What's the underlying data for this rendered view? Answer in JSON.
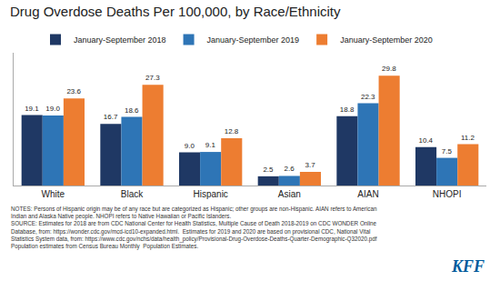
{
  "chart_data": {
    "type": "bar",
    "title": "Drug Overdose Deaths Per 100,000, by Race/Ethnicity",
    "categories": [
      "White",
      "Black",
      "Hispanic",
      "Asian",
      "AIAN",
      "NHOPI"
    ],
    "series": [
      {
        "name": "January-September 2018",
        "color": "#1f3864",
        "values": [
          19.1,
          16.7,
          9.0,
          2.5,
          18.8,
          10.4
        ],
        "value_labels": [
          "19.1",
          "16.7",
          "9.0",
          "2.5",
          "18.8",
          "10.4"
        ]
      },
      {
        "name": "January-September 2019",
        "color": "#2e75b6",
        "values": [
          19.0,
          18.6,
          9.1,
          2.6,
          22.3,
          7.5
        ],
        "value_labels": [
          "19.0",
          "18.6",
          "9.1",
          "2.6",
          "22.3",
          "7.5"
        ]
      },
      {
        "name": "January-September 2020",
        "color": "#ed7d31",
        "values": [
          23.6,
          27.3,
          12.8,
          3.7,
          29.8,
          11.2
        ],
        "value_labels": [
          "23.6",
          "27.3",
          "12.8",
          "3.7",
          "29.8",
          "11.2"
        ]
      }
    ],
    "ylim": [
      0,
      36
    ],
    "grid": false,
    "legend": "top",
    "data_labels": true,
    "tick_labels": "x",
    "annotations": [
      "NOTES: Persons of Hispanic origin may be of any race but are categorized as Hispanic; other groups are non-Hispanic. AIAN refers to American\nIndian and Alaska Native people. NHOPI refers to Native Hawaiian or Pacific Islanders.\nSOURCE: Estimates for 2018 are from CDC National Center for Health Statistics, Multiple Cause of Death 2018-2019 on CDC WONDER Online\nDatabase, from: https://wonder.cdc.gov/mcd-icd10-expanded.html.  Estimates for 2019 and 2020 are based on provisional CDC, National Vital\nStatistics System data, from: https://www.cdc.gov/nchs/data/health_policy/Provisional-Drug-Overdose-Deaths-Quarter-Demographic-Q32020.pdf\nPopulation estimates from Census Bureau Monthly  Population Estimates.",
      "KFF"
    ]
  }
}
